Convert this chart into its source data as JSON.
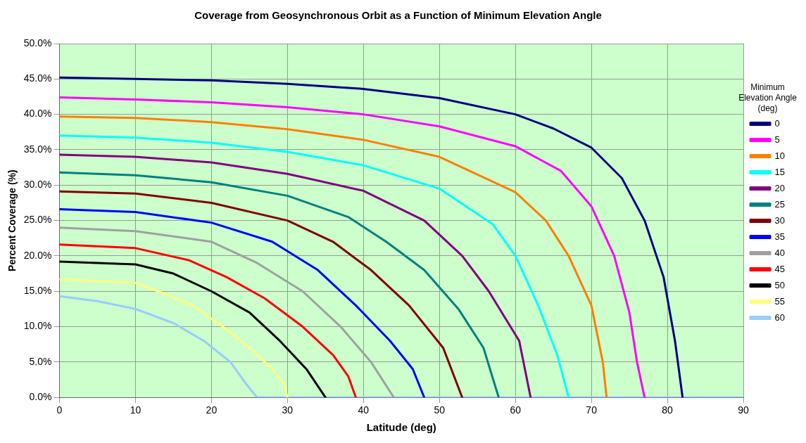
{
  "chart_data": {
    "type": "line",
    "title": "Coverage from Geosynchronous Orbit as a Function of Minimum Elevation Angle",
    "xlabel": "Latitude (deg)",
    "ylabel": "Percent Coverage (%)",
    "legend_title": "Minimum Elevation Angle (deg)",
    "legend": "right",
    "grid": true,
    "marker": "none",
    "line_style": "solid",
    "xlim": [
      0,
      90
    ],
    "xticks": [
      0,
      10,
      20,
      30,
      40,
      50,
      60,
      70,
      80,
      90
    ],
    "ylim": [
      0,
      50
    ],
    "yticks": [
      {
        "value": 0,
        "label": "0.0%"
      },
      {
        "value": 5,
        "label": "5.0%"
      },
      {
        "value": 10,
        "label": "10.0%"
      },
      {
        "value": 15,
        "label": "15.0%"
      },
      {
        "value": 20,
        "label": "20.0%"
      },
      {
        "value": 25,
        "label": "25.0%"
      },
      {
        "value": 30,
        "label": "30.0%"
      },
      {
        "value": 35,
        "label": "35.0%"
      },
      {
        "value": 40,
        "label": "40.0%"
      },
      {
        "value": 45,
        "label": "45.0%"
      },
      {
        "value": 50,
        "label": "50.0%"
      }
    ],
    "series": [
      {
        "name": "0",
        "color": "#000080",
        "x": [
          0,
          10,
          20,
          30,
          40,
          50,
          60,
          65,
          70,
          74,
          77,
          79.5,
          81,
          82
        ],
        "values": [
          45.2,
          45,
          44.8,
          44.3,
          43.6,
          42.3,
          40,
          38,
          35.3,
          31,
          25,
          17,
          8,
          0
        ]
      },
      {
        "name": "5",
        "color": "#ff00ff",
        "x": [
          0,
          10,
          20,
          30,
          40,
          50,
          60,
          66,
          70,
          73,
          75,
          76,
          77
        ],
        "values": [
          42.4,
          42.1,
          41.7,
          41,
          40,
          38.3,
          35.5,
          32,
          27,
          20,
          12,
          5,
          0
        ]
      },
      {
        "name": "10",
        "color": "#ff7f00",
        "x": [
          0,
          10,
          20,
          30,
          40,
          50,
          60,
          64,
          67,
          70,
          71.5,
          72
        ],
        "values": [
          39.7,
          39.5,
          38.9,
          37.9,
          36.4,
          34,
          29,
          25,
          20,
          13,
          5,
          0
        ]
      },
      {
        "name": "15",
        "color": "#00ffff",
        "x": [
          0,
          10,
          20,
          30,
          40,
          50,
          57,
          60,
          63,
          65.5,
          67
        ],
        "values": [
          37,
          36.7,
          36,
          34.7,
          32.8,
          29.5,
          24.5,
          20,
          13,
          6,
          0
        ]
      },
      {
        "name": "20",
        "color": "#800080",
        "x": [
          0,
          10,
          20,
          30,
          40,
          48,
          53,
          56.5,
          60.5,
          62
        ],
        "values": [
          34.3,
          34,
          33.2,
          31.6,
          29.2,
          25,
          20,
          15,
          8,
          0
        ]
      },
      {
        "name": "25",
        "color": "#008080",
        "x": [
          0,
          10,
          20,
          30,
          38,
          43,
          48,
          52.5,
          55.8,
          57.8
        ],
        "values": [
          31.8,
          31.4,
          30.4,
          28.5,
          25.5,
          22,
          18,
          12.5,
          7,
          0
        ]
      },
      {
        "name": "30",
        "color": "#800000",
        "x": [
          0,
          10,
          20,
          30,
          36,
          41,
          46,
          50.5,
          53
        ],
        "values": [
          29.1,
          28.8,
          27.5,
          25,
          22,
          18,
          13,
          7,
          0
        ]
      },
      {
        "name": "35",
        "color": "#0000ff",
        "x": [
          0,
          10,
          20,
          28,
          34,
          39,
          43.5,
          46.5,
          48
        ],
        "values": [
          26.6,
          26.2,
          24.7,
          22,
          18,
          13,
          8,
          4,
          0
        ]
      },
      {
        "name": "40",
        "color": "#a0a0a0",
        "x": [
          0,
          10,
          20,
          26,
          32,
          37,
          41,
          44
        ],
        "values": [
          24,
          23.5,
          22,
          19,
          15,
          10,
          5,
          0
        ]
      },
      {
        "name": "45",
        "color": "#ff0000",
        "x": [
          0,
          10,
          17,
          22,
          27,
          32,
          36,
          38,
          39
        ],
        "values": [
          21.6,
          21.1,
          19.4,
          17,
          14,
          10,
          6,
          3,
          0
        ]
      },
      {
        "name": "50",
        "color": "#000000",
        "x": [
          0,
          10,
          15,
          20,
          25,
          29,
          32.5,
          35
        ],
        "values": [
          19.2,
          18.8,
          17.5,
          15,
          12,
          8,
          4,
          0
        ]
      },
      {
        "name": "55",
        "color": "#ffff80",
        "x": [
          0,
          10,
          13,
          17.5,
          21.5,
          25,
          28,
          29.5,
          30
        ],
        "values": [
          16.7,
          16.2,
          15,
          13,
          10,
          7,
          4,
          2,
          0
        ]
      },
      {
        "name": "60",
        "color": "#99ccff",
        "x": [
          0,
          5,
          10,
          15,
          19,
          22.5,
          24.5,
          26,
          90
        ],
        "values": [
          14.3,
          13.6,
          12.5,
          10.5,
          8,
          5,
          2,
          0,
          0
        ]
      }
    ]
  }
}
